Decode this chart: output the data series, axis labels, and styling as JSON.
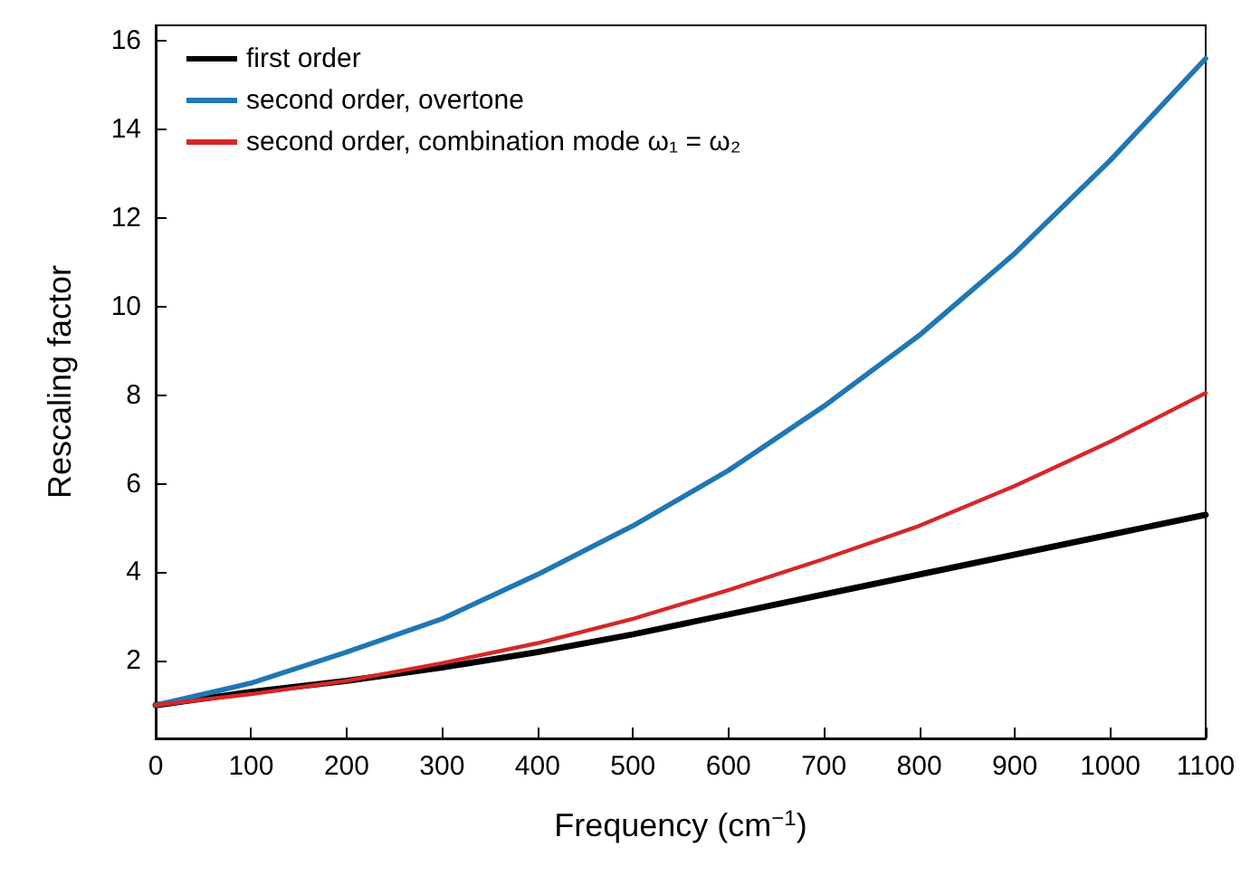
{
  "chart_data": {
    "type": "line",
    "xlabel": "Frequency (cm$^{−1}$)",
    "ylabel": "Rescaling factor",
    "x": [
      0,
      100,
      200,
      300,
      400,
      500,
      600,
      700,
      800,
      900,
      1000,
      1100
    ],
    "series": [
      {
        "name": "first order",
        "color": "#000000",
        "values": [
          1,
          1.3,
          1.55,
          1.85,
          2.2,
          2.6,
          3.05,
          3.5,
          3.95,
          4.4,
          4.85,
          5.3
        ]
      },
      {
        "name": "second order, overtone",
        "color": "#1f77b4",
        "values": [
          1,
          1.5,
          2.2,
          2.95,
          3.95,
          5.05,
          6.3,
          7.75,
          9.35,
          11.2,
          13.3,
          15.6
        ]
      },
      {
        "name": "second order, combination mode ω₁ = ω₂",
        "color": "#d62728",
        "values": [
          1,
          1.25,
          1.55,
          1.95,
          2.4,
          2.95,
          3.6,
          4.3,
          5.05,
          5.95,
          6.95,
          8.05
        ]
      }
    ],
    "xlim": [
      0,
      1100
    ],
    "xticks": [
      0,
      100,
      200,
      300,
      400,
      500,
      600,
      700,
      800,
      900,
      1000,
      1100
    ],
    "ylim": [
      0.25,
      16.35
    ],
    "yticks": [
      2,
      4,
      6,
      8,
      10,
      12,
      14,
      16
    ],
    "grid": false,
    "legend": "top left",
    "marker": "none",
    "line_style": "solid"
  }
}
